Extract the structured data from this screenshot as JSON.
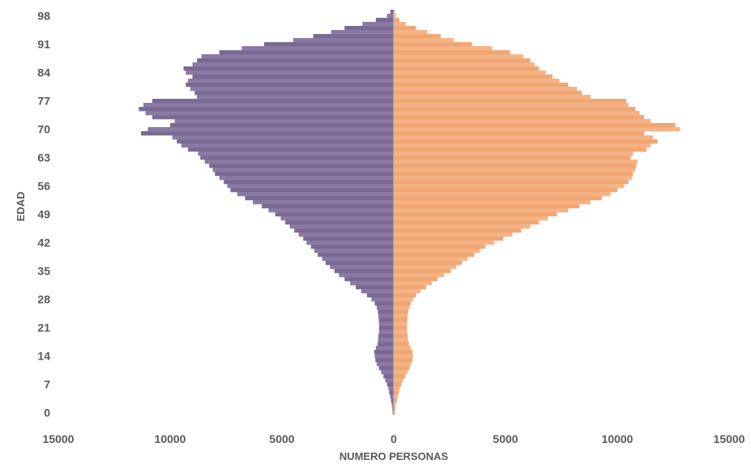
{
  "chart_data": {
    "type": "bar",
    "orientation": "horizontal",
    "layout": "population-pyramid",
    "xlabel": "NUMERO PERSONAS",
    "ylabel": "EDAD",
    "xlim": [
      -15000,
      15000
    ],
    "xticks": [
      -15000,
      -10000,
      -5000,
      0,
      5000,
      10000,
      15000
    ],
    "xtick_labels": [
      "15000",
      "10000",
      "5000",
      "0",
      "5000",
      "10000",
      "15000"
    ],
    "yticks": [
      0,
      7,
      14,
      21,
      28,
      35,
      42,
      49,
      56,
      63,
      70,
      77,
      84,
      91,
      98
    ],
    "ylim": [
      0,
      99
    ],
    "grid": false,
    "legend": "none",
    "ages": [
      0,
      1,
      2,
      3,
      4,
      5,
      6,
      7,
      8,
      9,
      10,
      11,
      12,
      13,
      14,
      15,
      16,
      17,
      18,
      19,
      20,
      21,
      22,
      23,
      24,
      25,
      26,
      27,
      28,
      29,
      30,
      31,
      32,
      33,
      34,
      35,
      36,
      37,
      38,
      39,
      40,
      41,
      42,
      43,
      44,
      45,
      46,
      47,
      48,
      49,
      50,
      51,
      52,
      53,
      54,
      55,
      56,
      57,
      58,
      59,
      60,
      61,
      62,
      63,
      64,
      65,
      66,
      67,
      68,
      69,
      70,
      71,
      72,
      73,
      74,
      75,
      76,
      77,
      78,
      79,
      80,
      81,
      82,
      83,
      84,
      85,
      86,
      87,
      88,
      89,
      90,
      91,
      92,
      93,
      94,
      95,
      96,
      97,
      98,
      99
    ],
    "series": [
      {
        "color": "#8b7aa3",
        "side": "left",
        "values": [
          50,
          60,
          90,
          120,
          160,
          200,
          240,
          300,
          380,
          460,
          560,
          660,
          760,
          820,
          850,
          870,
          800,
          720,
          700,
          680,
          660,
          650,
          660,
          670,
          690,
          710,
          760,
          850,
          1000,
          1200,
          1450,
          1700,
          1950,
          2200,
          2450,
          2650,
          2850,
          3050,
          3200,
          3400,
          3550,
          3700,
          3900,
          4050,
          4250,
          4450,
          4650,
          4850,
          5050,
          5300,
          5600,
          5900,
          6300,
          6650,
          7000,
          7300,
          7450,
          7600,
          7800,
          8000,
          8100,
          8250,
          8450,
          8650,
          8750,
          9200,
          9500,
          9700,
          9900,
          11300,
          11000,
          10000,
          9800,
          10800,
          11100,
          11400,
          11200,
          10800,
          8800,
          8900,
          9100,
          9300,
          9200,
          9000,
          9300,
          9400,
          9000,
          8800,
          8600,
          7800,
          6800,
          5800,
          4500,
          3600,
          2800,
          2200,
          1400,
          800,
          300,
          150
        ]
      },
      {
        "color": "#f6b486",
        "side": "right",
        "values": [
          60,
          70,
          100,
          140,
          180,
          230,
          280,
          340,
          430,
          520,
          620,
          700,
          780,
          830,
          860,
          840,
          760,
          680,
          640,
          620,
          600,
          590,
          600,
          610,
          630,
          650,
          700,
          760,
          860,
          1000,
          1200,
          1450,
          1700,
          1950,
          2250,
          2550,
          2800,
          3050,
          3300,
          3600,
          3850,
          4100,
          4500,
          4900,
          5300,
          5700,
          6100,
          6500,
          6900,
          7300,
          7800,
          8300,
          8800,
          9300,
          9700,
          10000,
          10300,
          10500,
          10650,
          10700,
          10800,
          10850,
          10900,
          10600,
          10700,
          11300,
          11500,
          11800,
          11600,
          11200,
          12800,
          12600,
          11500,
          11200,
          11000,
          10800,
          10500,
          10400,
          8800,
          8400,
          8200,
          7800,
          7400,
          7100,
          6800,
          6500,
          6300,
          6100,
          5800,
          5200,
          4400,
          3500,
          2700,
          2100,
          1500,
          1000,
          550,
          250,
          100,
          50
        ]
      }
    ]
  }
}
